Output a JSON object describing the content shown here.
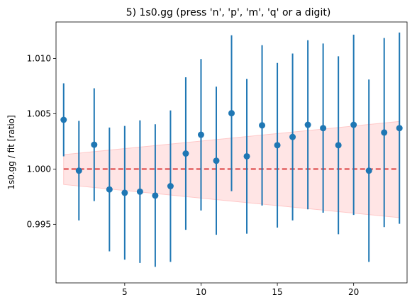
{
  "chart_data": {
    "type": "scatter",
    "title": "5) 1s0.gg   (press 'n', 'p', 'm', 'q' or a digit)",
    "xlabel": "",
    "ylabel": "1s0.gg / fit   [ratio]",
    "xlim": [
      0.5,
      23.5
    ],
    "ylim": [
      0.9897,
      1.0133
    ],
    "x_ticks": [
      5,
      10,
      15,
      20
    ],
    "y_ticks": [
      0.995,
      1.0,
      1.005,
      1.01
    ],
    "y_tick_labels": [
      "0.995",
      "1.000",
      "1.005",
      "1.010"
    ],
    "grid": false,
    "colors": {
      "points": "#1f77b4",
      "reference": "#d62728",
      "band_fill": "#ffe5e5",
      "band_edge": "#ffc8c8"
    },
    "reference_line": {
      "y": 1.0,
      "style": "dashed"
    },
    "band": {
      "x": [
        1,
        23
      ],
      "lower": [
        0.9986,
        0.9956
      ],
      "upper": [
        1.0013,
        1.0043
      ]
    },
    "series": [
      {
        "x": [
          1,
          2,
          3,
          4,
          5,
          6,
          7,
          8,
          9,
          10,
          11,
          12,
          13,
          14,
          15,
          16,
          17,
          18,
          19,
          20,
          21,
          22,
          23
        ],
        "y": [
          1.00445,
          0.99985,
          1.0022,
          0.99815,
          0.99785,
          0.99795,
          0.9976,
          0.99845,
          1.0014,
          1.0031,
          1.00075,
          1.00505,
          1.00115,
          1.00395,
          1.00215,
          1.0029,
          1.004,
          1.0037,
          1.00215,
          1.004,
          0.99985,
          1.0033,
          1.0037
        ],
        "yerr": [
          0.0033,
          0.0045,
          0.0051,
          0.0056,
          0.00605,
          0.00645,
          0.00645,
          0.00685,
          0.0069,
          0.00685,
          0.0067,
          0.00705,
          0.007,
          0.00725,
          0.00745,
          0.00755,
          0.00765,
          0.00765,
          0.00805,
          0.00815,
          0.00825,
          0.00855,
          0.00865
        ]
      }
    ]
  }
}
